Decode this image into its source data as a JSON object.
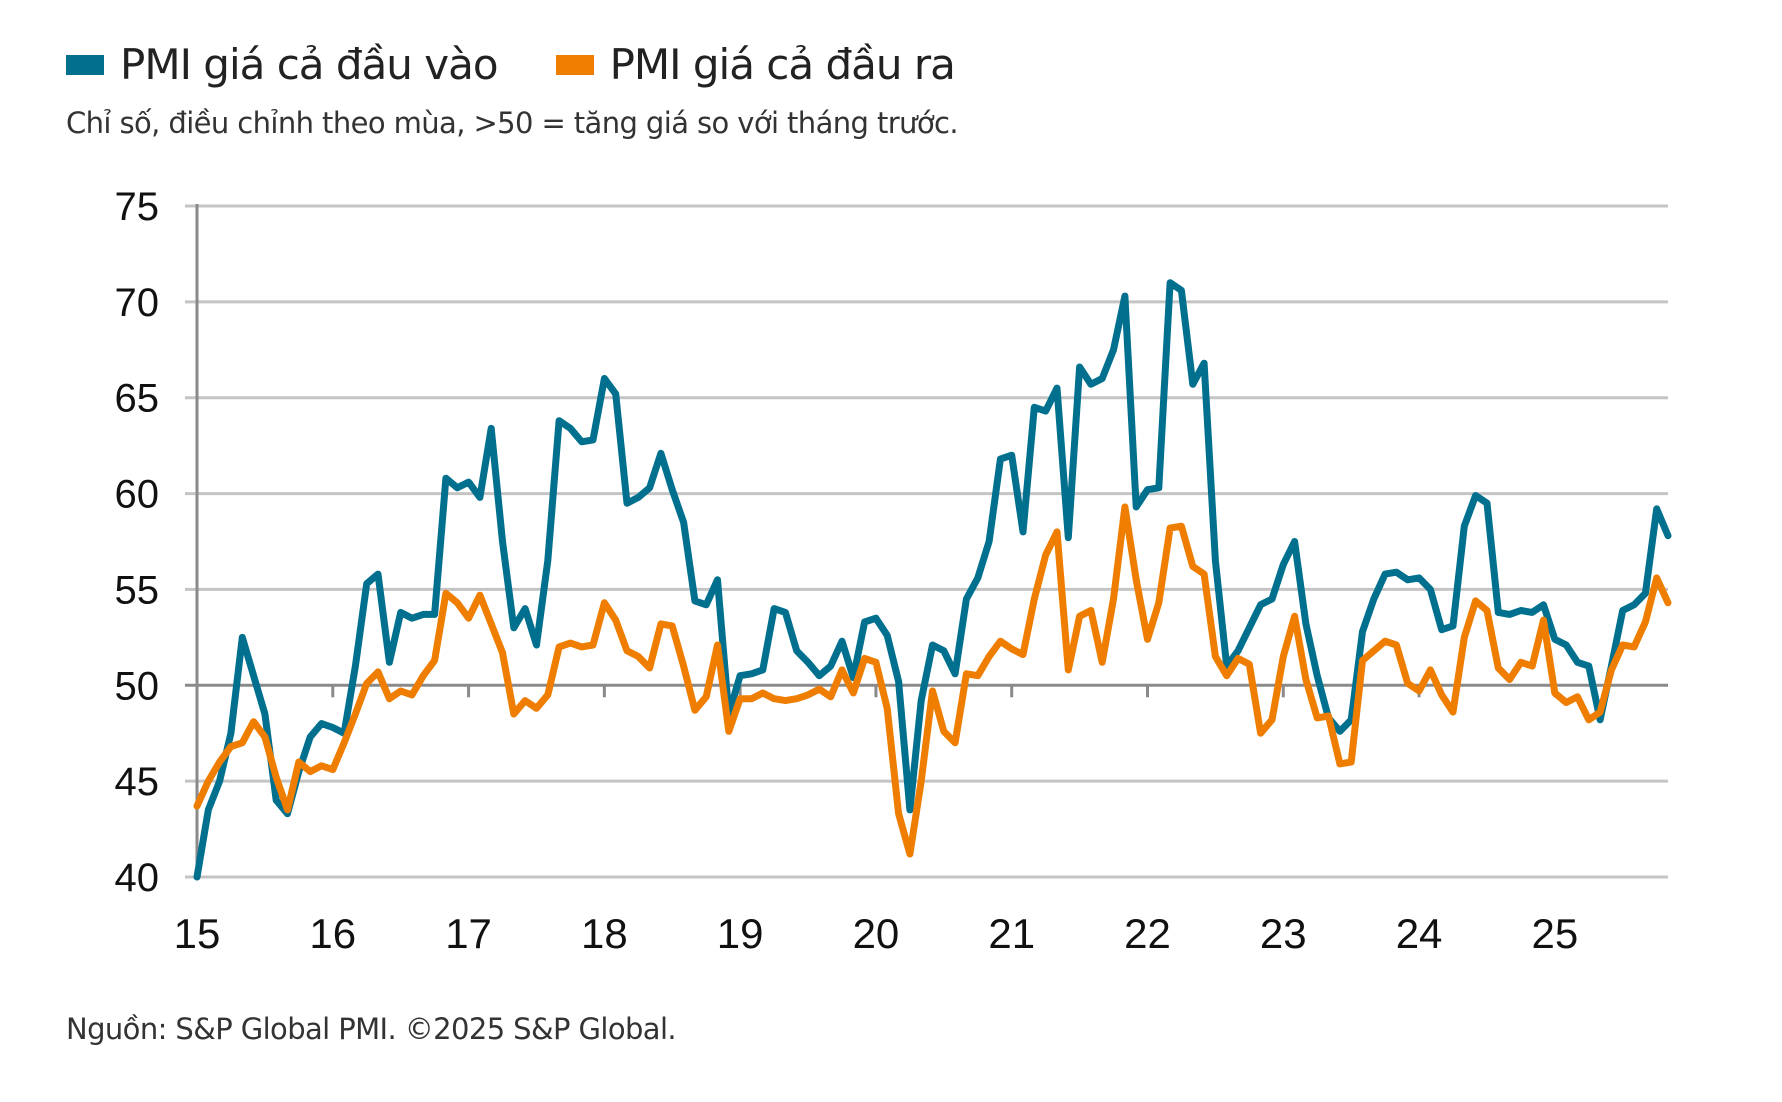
{
  "legend": [
    {
      "label": "PMI giá cả đầu vào",
      "color": "#00708e"
    },
    {
      "label": "PMI giá cả đầu ra",
      "color": "#ee7d00"
    }
  ],
  "subtitle": "Chỉ số, điều chỉnh theo mùa, >50 = tăng giá so với tháng trước.",
  "footer": "Nguồn: S&P Global PMI. ©2025 S&P Global.",
  "chart_data": {
    "type": "line",
    "title": "",
    "xlabel": "",
    "ylabel": "",
    "frequency": "monthly",
    "x_start": "2015-01",
    "x_end": "2025-11",
    "x_tick_labels": [
      "15",
      "16",
      "17",
      "18",
      "19",
      "20",
      "21",
      "22",
      "23",
      "24",
      "25"
    ],
    "y_ticks": [
      40,
      45,
      50,
      55,
      60,
      65,
      70,
      75
    ],
    "ylim": [
      40,
      75
    ],
    "grid": true,
    "reference_line": 50,
    "legend_position": "top-left",
    "series": [
      {
        "name": "PMI giá cả đầu vào",
        "color": "#00708e",
        "values": [
          40,
          43.5,
          45,
          47.5,
          52.5,
          50.5,
          48.5,
          44,
          43.3,
          45.5,
          47.3,
          48,
          47.8,
          47.5,
          51,
          55.3,
          55.8,
          51.2,
          53.8,
          53.5,
          53.7,
          53.7,
          60.8,
          60.3,
          60.6,
          59.8,
          63.4,
          57.5,
          53,
          54,
          52.1,
          56.5,
          63.8,
          63.4,
          62.7,
          62.8,
          66,
          65.2,
          59.5,
          59.8,
          60.3,
          62.1,
          60.2,
          58.5,
          54.4,
          54.2,
          55.5,
          48.5,
          50.5,
          50.6,
          50.8,
          54,
          53.8,
          51.8,
          51.2,
          50.5,
          51,
          52.3,
          50.4,
          53.3,
          53.5,
          52.6,
          50.2,
          43.5,
          49.2,
          52.1,
          51.8,
          50.6,
          54.5,
          55.6,
          57.5,
          61.8,
          62,
          58,
          64.5,
          64.3,
          65.5,
          57.7,
          66.6,
          65.7,
          66,
          67.5,
          70.3,
          59.3,
          60.2,
          60.3,
          71,
          70.6,
          65.7,
          66.8,
          56.5,
          51,
          51.8,
          53,
          54.2,
          54.5,
          56.3,
          57.5,
          53.2,
          50.5,
          48.3,
          47.6,
          48.2,
          52.8,
          54.5,
          55.8,
          55.9,
          55.5,
          55.6,
          55,
          52.9,
          53.1,
          58.3,
          59.9,
          59.5,
          53.8,
          53.7,
          53.9,
          53.8,
          54.2,
          52.4,
          52.1,
          51.2,
          51,
          48.2,
          51,
          53.9,
          54.2,
          54.8,
          59.2,
          57.8
        ]
      },
      {
        "name": "PMI giá cả đầu ra",
        "color": "#ee7d00",
        "values": [
          43.7,
          45,
          46,
          46.8,
          47,
          48.1,
          47.3,
          45.2,
          43.5,
          46,
          45.5,
          45.8,
          45.6,
          47,
          48.5,
          50.1,
          50.7,
          49.3,
          49.7,
          49.5,
          50.5,
          51.3,
          54.8,
          54.3,
          53.5,
          54.7,
          53.2,
          51.7,
          48.5,
          49.2,
          48.8,
          49.5,
          52,
          52.2,
          52,
          52.1,
          54.3,
          53.4,
          51.8,
          51.5,
          50.9,
          53.2,
          53.1,
          51,
          48.7,
          49.4,
          52.1,
          47.6,
          49.3,
          49.3,
          49.6,
          49.3,
          49.2,
          49.3,
          49.5,
          49.8,
          49.4,
          50.8,
          49.6,
          51.4,
          51.2,
          48.8,
          43.3,
          41.2,
          45,
          49.7,
          47.6,
          47,
          50.6,
          50.5,
          51.5,
          52.3,
          51.9,
          51.6,
          54.5,
          56.8,
          58,
          50.8,
          53.6,
          53.9,
          51.2,
          54.5,
          59.3,
          55.5,
          52.4,
          54.3,
          58.2,
          58.3,
          56.2,
          55.8,
          51.5,
          50.5,
          51.4,
          51.1,
          47.5,
          48.2,
          51.5,
          53.6,
          50.3,
          48.3,
          48.4,
          45.9,
          46,
          51.3,
          51.8,
          52.3,
          52.1,
          50.1,
          49.7,
          50.8,
          49.5,
          48.6,
          52.5,
          54.4,
          53.9,
          50.9,
          50.3,
          51.2,
          51,
          53.4,
          49.6,
          49.1,
          49.4,
          48.2,
          48.6,
          50.8,
          52.1,
          52,
          53.3,
          55.6,
          54.3
        ]
      }
    ]
  }
}
